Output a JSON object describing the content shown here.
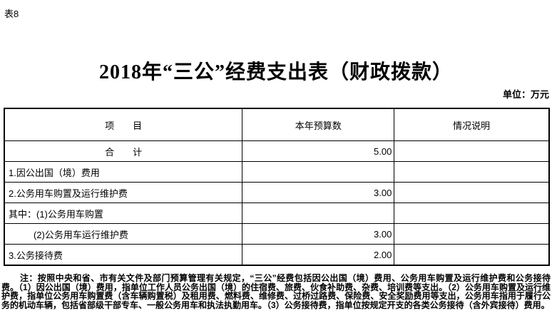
{
  "page": {
    "table_label": "表8",
    "title": "2018年“三公”经费支出表（财政拨款）",
    "unit_label": "单位：万元"
  },
  "table": {
    "columns": [
      "项　　目",
      "本年预算数",
      "情况说明"
    ],
    "rows": [
      {
        "item": "合　　计",
        "budget": "5.00",
        "note": ""
      },
      {
        "item": "1.因公出国（境）费用",
        "budget": "",
        "note": ""
      },
      {
        "item": "2.公务用车购置及运行维护费",
        "budget": "3.00",
        "note": ""
      },
      {
        "item": "其中：(1)公务用车购置",
        "budget": "",
        "note": ""
      },
      {
        "item": "(2)公务用车运行维护费",
        "budget": "3.00",
        "note": ""
      },
      {
        "item": "3.公务接待费",
        "budget": "2.00",
        "note": ""
      }
    ]
  },
  "footnote": "注：按照中央和省、市有关文件及部门预算管理有关规定，“三公”经费包括因公出国（境）费用、公务用车购置及运行维护费和公务接待费。（1）因公出国（境）费用，指单位工作人员公务出国（境）的住宿费、旅费、伙食补助费、杂费、培训费等支出。（2）公务用车购置及运行维护费，指单位公务用车购置费（含车辆购置税）及租用费、燃料费、维修费、过桥过路费、保险费、安全奖励费用等支出，公务用车指用于履行公务的机动车辆，包括省部级干部专车、一般公务用车和执法执勤用车。（3）公务接待费，指单位按规定开支的各类公务接待（含外宾接待）费用。"
}
